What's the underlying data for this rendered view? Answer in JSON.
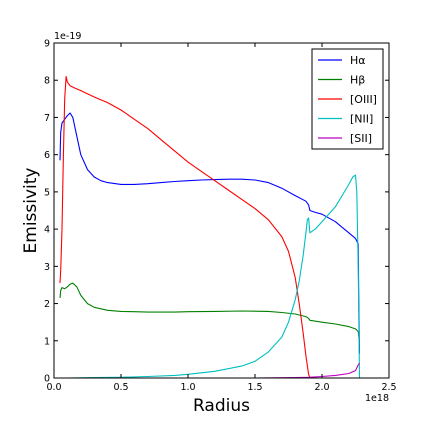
{
  "chart_data": {
    "type": "line",
    "xlabel": "Radius",
    "ylabel": "Emissivity",
    "x_offset_label": "1e18",
    "y_offset_label": "1e-19",
    "xlim": [
      0.0,
      2.5
    ],
    "ylim": [
      0,
      9
    ],
    "xticks": [
      "0.0",
      "0.5",
      "1.0",
      "1.5",
      "2.0",
      "2.5"
    ],
    "yticks": [
      "0",
      "1",
      "2",
      "3",
      "4",
      "5",
      "6",
      "7",
      "8",
      "9"
    ],
    "grid": false,
    "legend_position": "top-right",
    "series": [
      {
        "name": "Hα",
        "color": "#0000ff",
        "x": [
          0.045,
          0.05,
          0.06,
          0.08,
          0.1,
          0.12,
          0.14,
          0.17,
          0.2,
          0.25,
          0.3,
          0.35,
          0.4,
          0.5,
          0.6,
          0.7,
          0.8,
          0.9,
          1.0,
          1.1,
          1.2,
          1.3,
          1.4,
          1.5,
          1.6,
          1.7,
          1.8,
          1.88,
          1.9,
          1.91,
          1.95,
          2.0,
          2.1,
          2.15,
          2.2,
          2.25,
          2.27,
          2.275,
          2.28
        ],
        "y": [
          5.85,
          6.6,
          6.85,
          6.95,
          7.05,
          7.12,
          7.0,
          6.5,
          6.0,
          5.6,
          5.4,
          5.3,
          5.25,
          5.2,
          5.2,
          5.22,
          5.25,
          5.28,
          5.3,
          5.32,
          5.33,
          5.34,
          5.34,
          5.32,
          5.25,
          5.1,
          4.9,
          4.75,
          4.65,
          4.5,
          4.45,
          4.4,
          4.2,
          4.05,
          3.9,
          3.75,
          3.6,
          2.0,
          0.65
        ]
      },
      {
        "name": "Hβ",
        "color": "#008000",
        "x": [
          0.045,
          0.05,
          0.06,
          0.08,
          0.1,
          0.12,
          0.14,
          0.17,
          0.2,
          0.25,
          0.3,
          0.4,
          0.5,
          0.6,
          0.7,
          0.8,
          0.9,
          1.0,
          1.2,
          1.4,
          1.6,
          1.7,
          1.8,
          1.88,
          1.9,
          1.91,
          2.0,
          2.1,
          2.2,
          2.25,
          2.27,
          2.28
        ],
        "y": [
          2.15,
          2.35,
          2.43,
          2.4,
          2.45,
          2.52,
          2.55,
          2.45,
          2.22,
          2.0,
          1.9,
          1.82,
          1.79,
          1.78,
          1.77,
          1.77,
          1.77,
          1.78,
          1.79,
          1.8,
          1.79,
          1.76,
          1.72,
          1.65,
          1.6,
          1.55,
          1.5,
          1.45,
          1.38,
          1.32,
          1.25,
          0.95
        ]
      },
      {
        "name": "[OIII]",
        "color": "#ff0000",
        "x": [
          0.045,
          0.05,
          0.06,
          0.07,
          0.08,
          0.09,
          0.1,
          0.12,
          0.15,
          0.2,
          0.3,
          0.4,
          0.5,
          0.6,
          0.7,
          0.8,
          0.9,
          1.0,
          1.1,
          1.2,
          1.3,
          1.4,
          1.5,
          1.6,
          1.7,
          1.75,
          1.8,
          1.83,
          1.86,
          1.88,
          1.9,
          1.91,
          2.0,
          2.1,
          2.2,
          2.25,
          2.28
        ],
        "y": [
          2.55,
          2.9,
          4.0,
          6.0,
          7.5,
          8.1,
          7.95,
          7.85,
          7.8,
          7.72,
          7.55,
          7.4,
          7.2,
          6.95,
          6.7,
          6.4,
          6.1,
          5.8,
          5.55,
          5.3,
          5.05,
          4.8,
          4.55,
          4.25,
          3.8,
          3.4,
          2.7,
          2.0,
          1.2,
          0.6,
          0.1,
          0.0,
          0.0,
          0.0,
          0.0,
          0.0,
          0.0
        ]
      },
      {
        "name": "[NII]",
        "color": "#00bfbf",
        "x": [
          0.045,
          0.1,
          0.3,
          0.5,
          0.7,
          0.9,
          1.0,
          1.2,
          1.4,
          1.5,
          1.6,
          1.7,
          1.75,
          1.8,
          1.83,
          1.86,
          1.88,
          1.89,
          1.9,
          1.91,
          1.95,
          2.0,
          2.1,
          2.15,
          2.2,
          2.23,
          2.25,
          2.26,
          2.27,
          2.28
        ],
        "y": [
          0.0,
          0.0,
          0.01,
          0.02,
          0.04,
          0.07,
          0.1,
          0.18,
          0.32,
          0.45,
          0.7,
          1.1,
          1.5,
          2.1,
          2.6,
          3.3,
          3.9,
          4.25,
          4.3,
          3.9,
          4.0,
          4.2,
          4.6,
          4.9,
          5.2,
          5.4,
          5.45,
          5.0,
          3.0,
          0.0
        ]
      },
      {
        "name": "[SII]",
        "color": "#bf00bf",
        "x": [
          0.045,
          0.5,
          1.0,
          1.5,
          1.8,
          1.9,
          2.0,
          2.1,
          2.2,
          2.25,
          2.27,
          2.28
        ],
        "y": [
          0.0,
          0.0,
          0.0,
          0.0,
          0.01,
          0.02,
          0.04,
          0.07,
          0.12,
          0.2,
          0.35,
          0.4
        ]
      }
    ]
  }
}
